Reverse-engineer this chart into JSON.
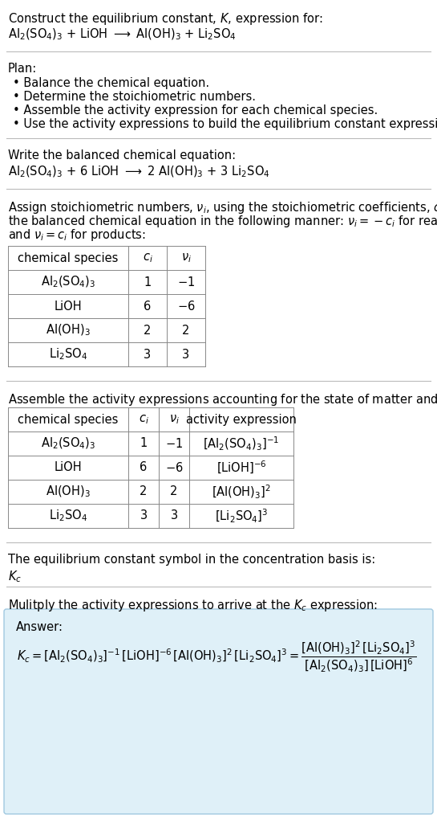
{
  "bg_color": "#ffffff",
  "answer_box_color": "#dff0f8",
  "answer_box_edge": "#a0c8e0",
  "plan_bullets": [
    "• Balance the chemical equation.",
    "• Determine the stoichiometric numbers.",
    "• Assemble the activity expression for each chemical species.",
    "• Use the activity expressions to build the equilibrium constant expression."
  ],
  "table1_headers": [
    "chemical species",
    "$c_i$",
    "$\\nu_i$"
  ],
  "table1_rows": [
    [
      "$\\mathrm{Al_2(SO_4)_3}$",
      "1",
      "$-1$"
    ],
    [
      "LiOH",
      "6",
      "$-6$"
    ],
    [
      "$\\mathrm{Al(OH)_3}$",
      "2",
      "2"
    ],
    [
      "$\\mathrm{Li_2SO_4}$",
      "3",
      "3"
    ]
  ],
  "table2_headers": [
    "chemical species",
    "$c_i$",
    "$\\nu_i$",
    "activity expression"
  ],
  "table2_rows": [
    [
      "$\\mathrm{Al_2(SO_4)_3}$",
      "1",
      "$-1$",
      "$[\\mathrm{Al_2(SO_4)_3}]^{-1}$"
    ],
    [
      "LiOH",
      "6",
      "$-6$",
      "$[\\mathrm{LiOH}]^{-6}$"
    ],
    [
      "$\\mathrm{Al(OH)_3}$",
      "2",
      "2",
      "$[\\mathrm{Al(OH)_3}]^{2}$"
    ],
    [
      "$\\mathrm{Li_2SO_4}$",
      "3",
      "3",
      "$[\\mathrm{Li_2SO_4}]^{3}$"
    ]
  ]
}
